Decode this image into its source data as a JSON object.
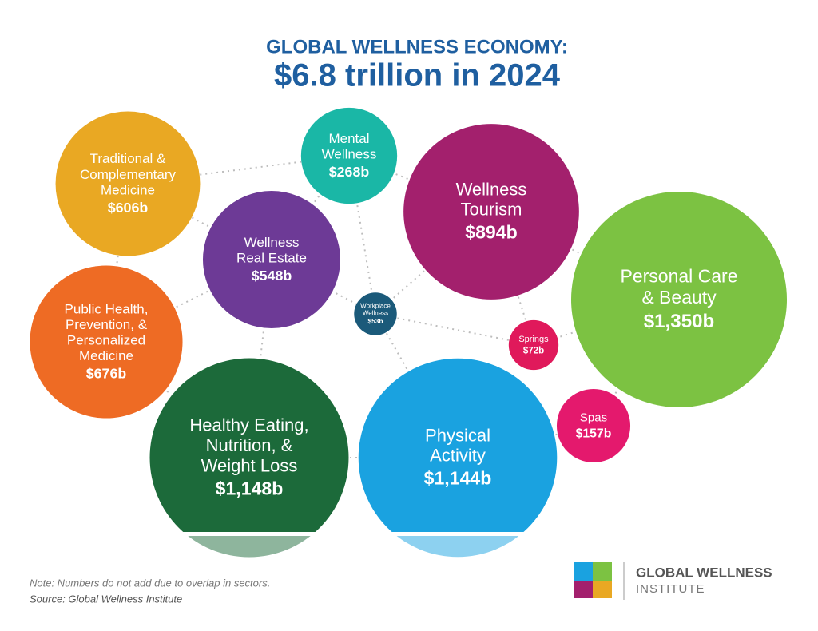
{
  "chart_data": {
    "type": "bubble",
    "title": "GLOBAL WELLNESS ECONOMY:",
    "subtitle": "$6.8 trillion in 2024",
    "categories": [
      [
        "Traditional &",
        "Complementary",
        "Medicine"
      ],
      [
        "Mental",
        "Wellness"
      ],
      [
        "Wellness",
        "Tourism"
      ],
      [
        "Personal Care",
        "& Beauty"
      ],
      [
        "Wellness",
        "Real Estate"
      ],
      [
        "Workplace",
        "Wellness"
      ],
      [
        "Public Health,",
        "Prevention, &",
        "Personalized",
        "Medicine"
      ],
      [
        "Springs"
      ],
      [
        "Healthy Eating,",
        "Nutrition, &",
        "Weight Loss"
      ],
      [
        "Physical",
        "Activity"
      ],
      [
        "Spas"
      ]
    ],
    "values": [
      606,
      268,
      894,
      1350,
      548,
      53,
      676,
      72,
      1148,
      1144,
      157
    ],
    "value_labels": [
      "$606b",
      "$268b",
      "$894b",
      "$1,350b",
      "$548b",
      "$53b",
      "$676b",
      "$72b",
      "$1,148b",
      "$1,144b",
      "$157b"
    ],
    "colors": [
      "#e9a823",
      "#1ab7a6",
      "#a3206d",
      "#7cc242",
      "#6d3a96",
      "#1b5a7a",
      "#ee6b24",
      "#e0195b",
      "#1c6a3a",
      "#1aa2e0",
      "#e4196d"
    ],
    "note": "Note: Numbers do not add due to overlap in sectors.",
    "source": "Source: Global Wellness Institute",
    "logo_text": [
      "GLOBAL WELLNESS",
      "INSTITUTE"
    ]
  }
}
